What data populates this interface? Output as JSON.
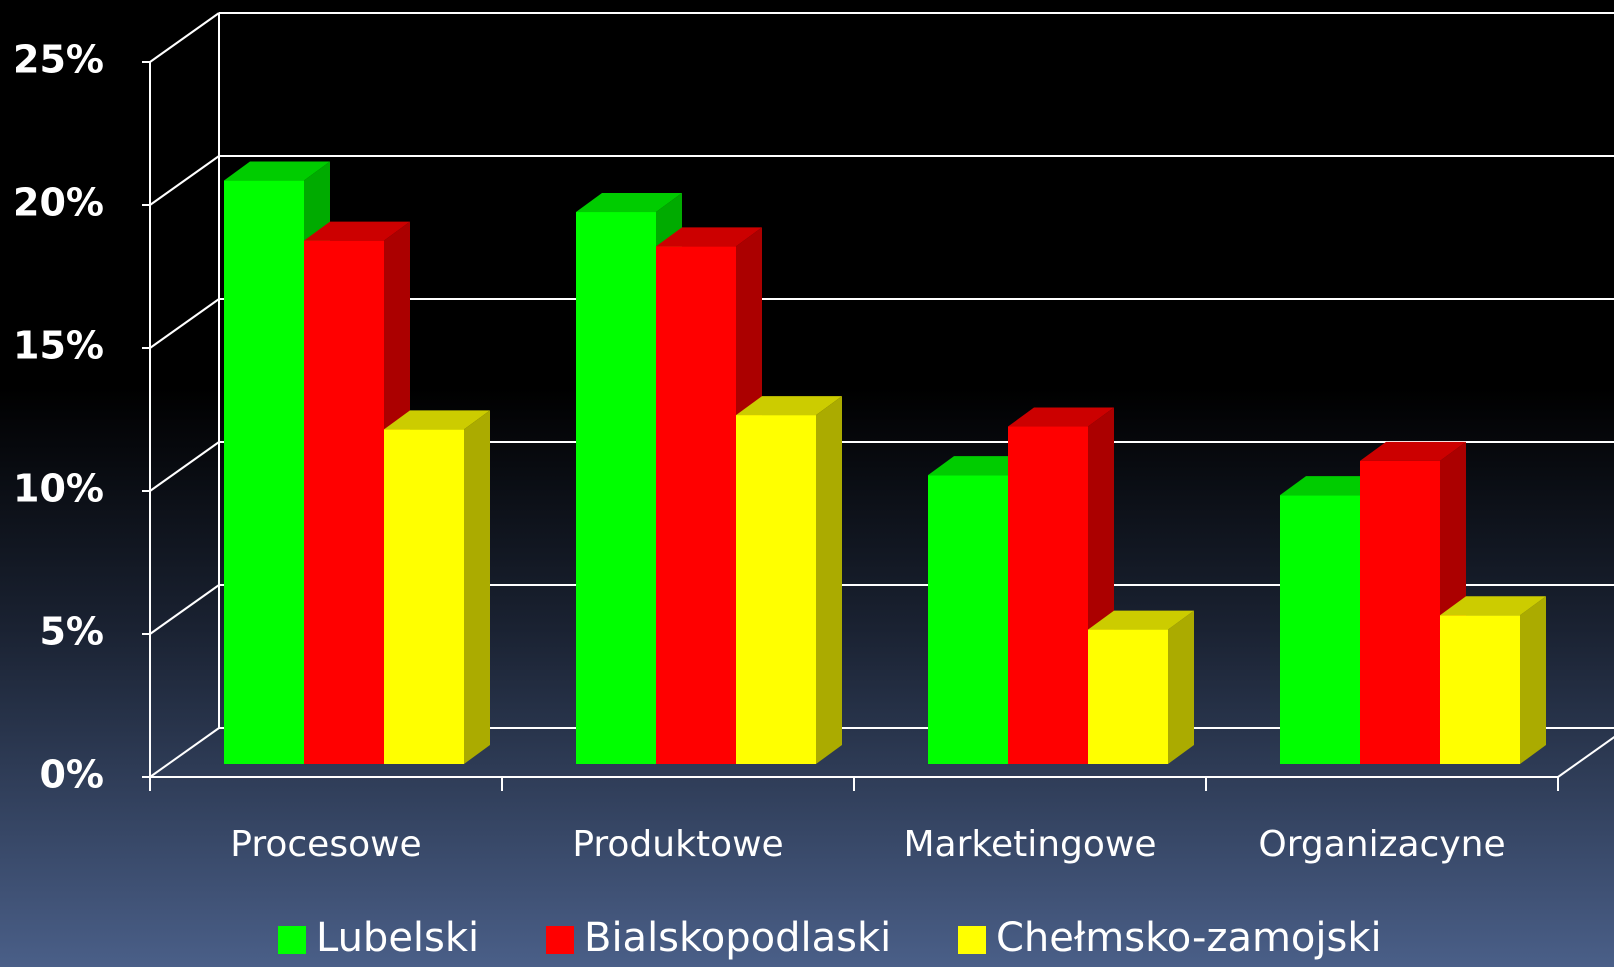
{
  "chart_data": {
    "type": "bar3d",
    "categories": [
      "Procesowe",
      "Produktowe",
      "Marketingowe",
      "Organizacyne"
    ],
    "series": [
      {
        "name": "Lubelski",
        "color": "#00ff00",
        "values": [
          20.4,
          19.3,
          10.1,
          9.4
        ]
      },
      {
        "name": "Bialskopodlaski",
        "color": "#ff0000",
        "values": [
          18.3,
          18.1,
          11.8,
          10.6
        ]
      },
      {
        "name": "Chełmsko-zamojski",
        "color": "#ffff00",
        "values": [
          11.7,
          12.2,
          4.7,
          5.2
        ]
      }
    ],
    "ylim": [
      0,
      25
    ],
    "yticks": [
      {
        "value": 0,
        "label": "0%"
      },
      {
        "value": 5,
        "label": "5%"
      },
      {
        "value": 10,
        "label": "10%"
      },
      {
        "value": 15,
        "label": "15%"
      },
      {
        "value": 20,
        "label": "20%"
      },
      {
        "value": 25,
        "label": "25%"
      }
    ],
    "grid": true,
    "legend": "bottom"
  }
}
